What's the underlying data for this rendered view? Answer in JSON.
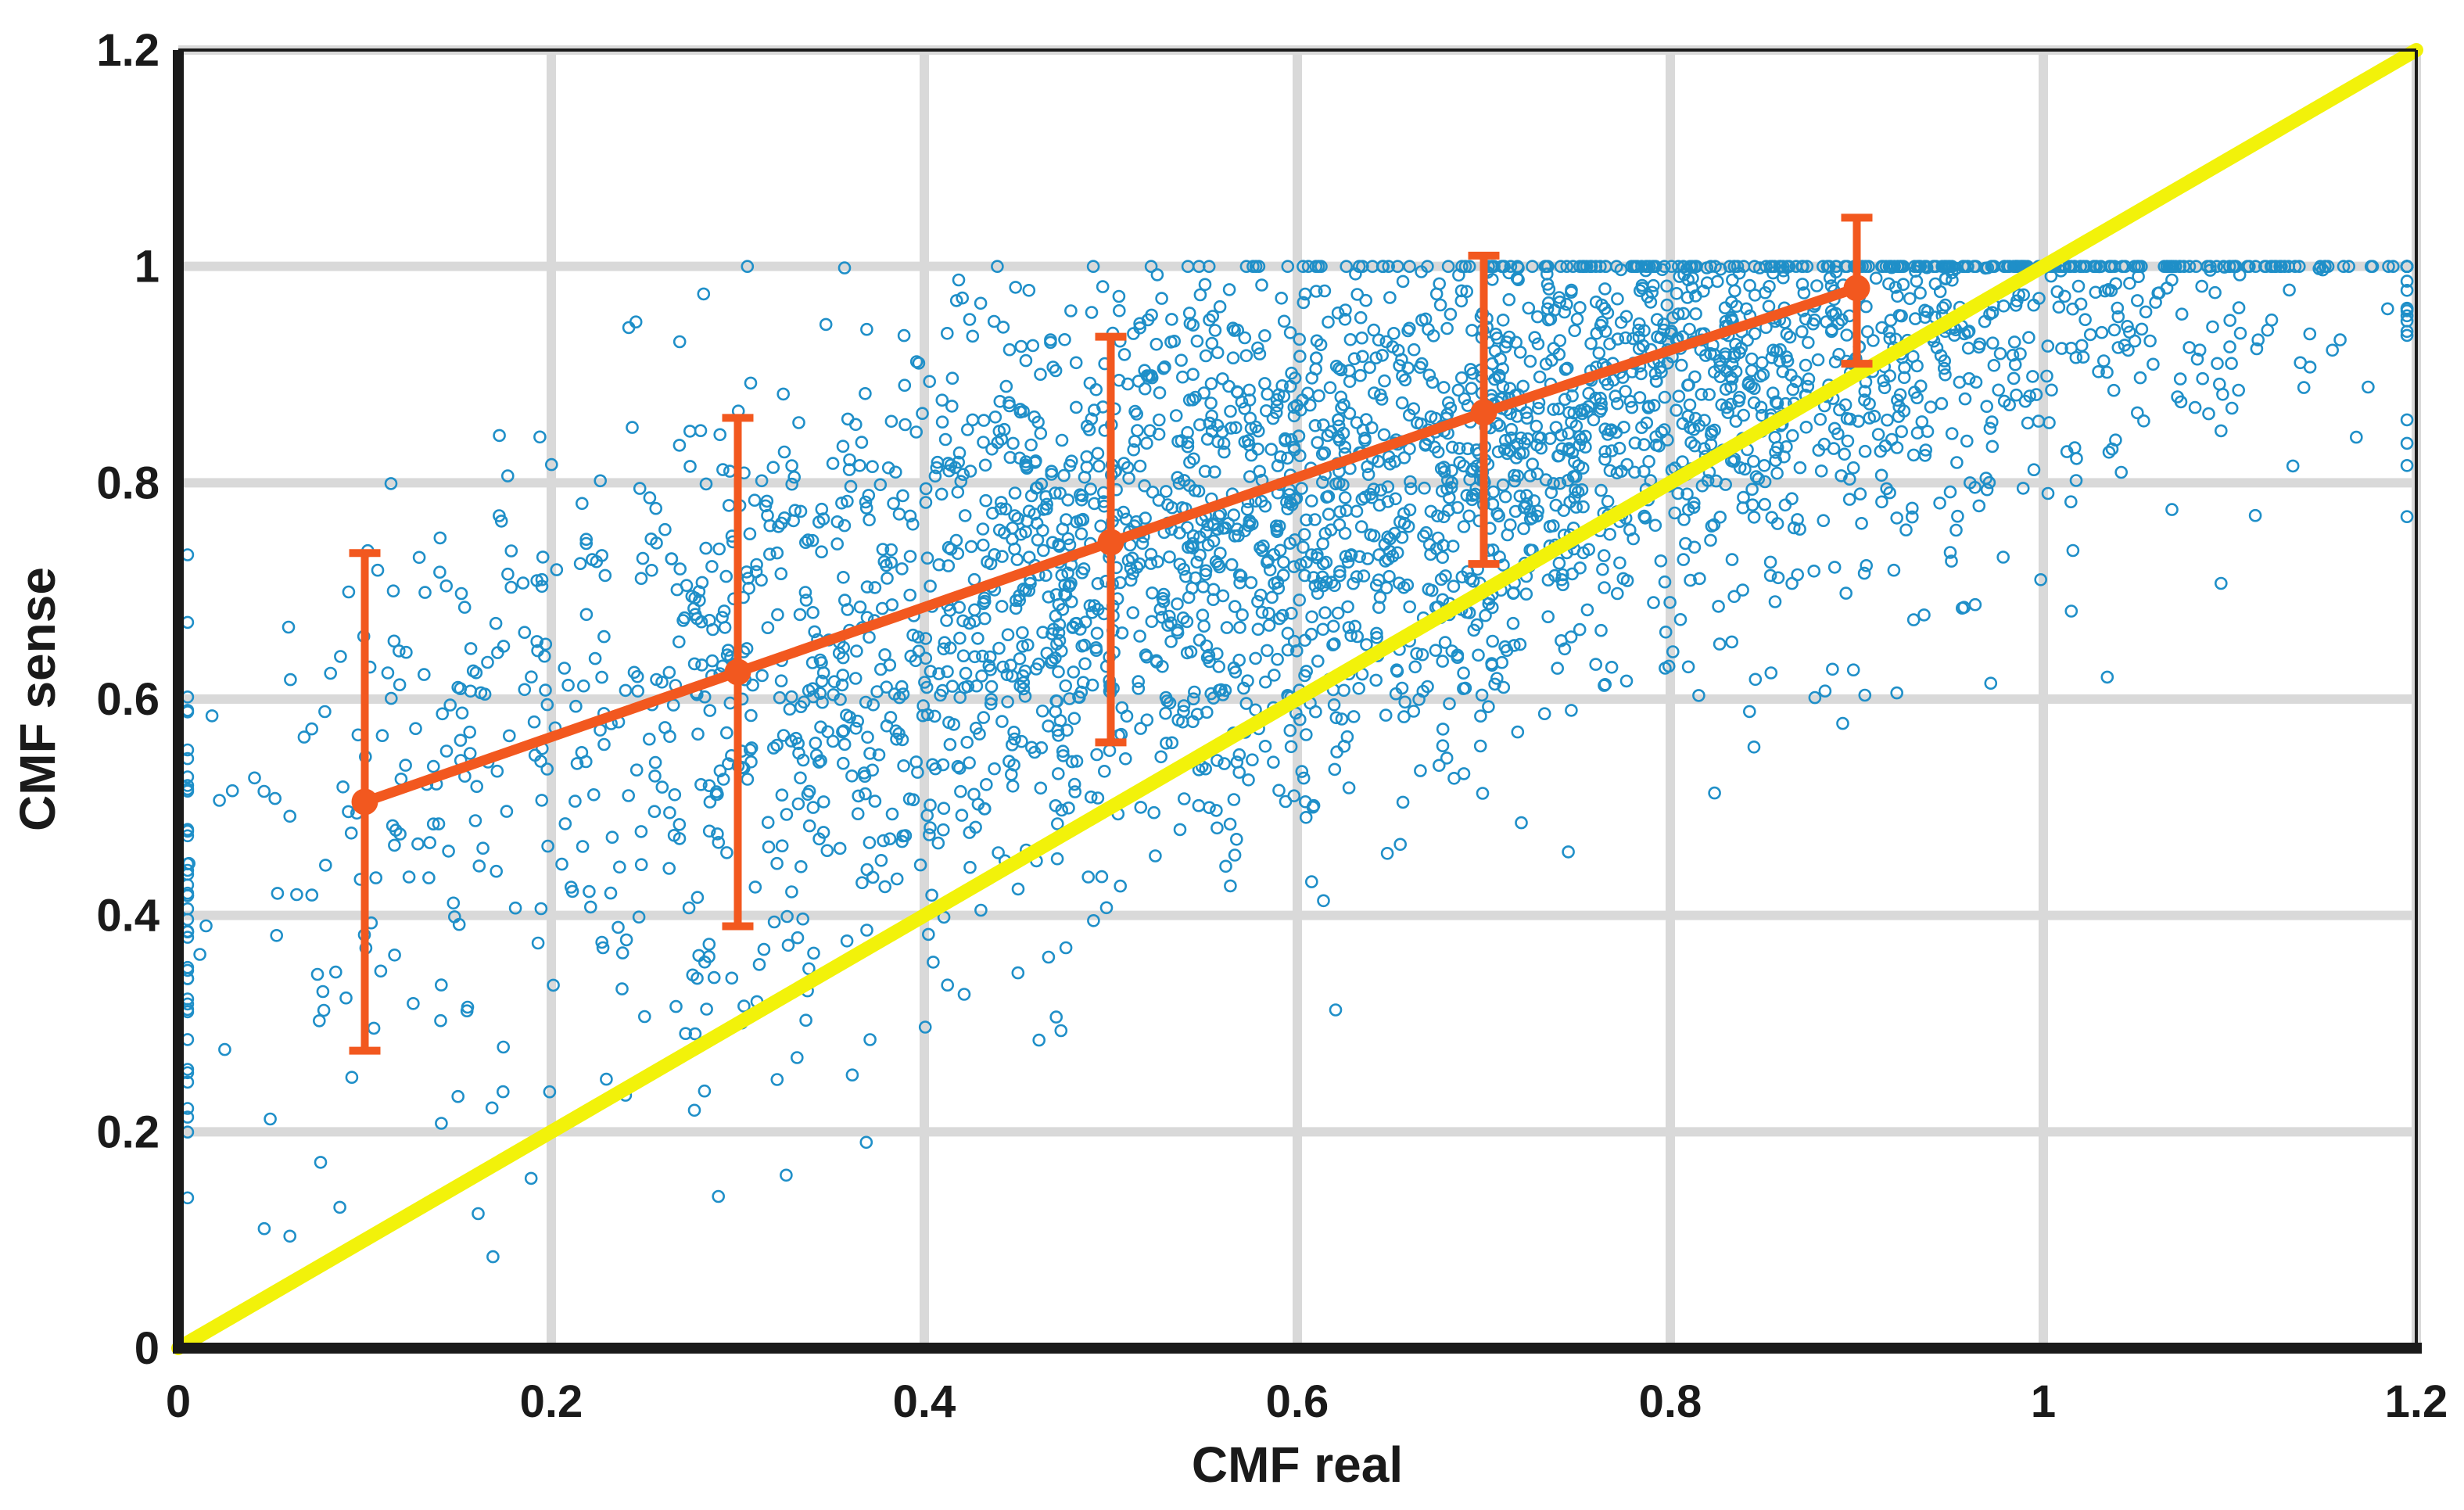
{
  "chart_data": {
    "type": "scatter",
    "title": "",
    "xlabel": "CMF real",
    "ylabel": "CMF sense",
    "xlim": [
      0,
      1.2
    ],
    "ylim": [
      0,
      1.2
    ],
    "x_ticks": [
      "0",
      "0.2",
      "0.4",
      "0.6",
      "0.8",
      "1",
      "1.2"
    ],
    "y_ticks": [
      "0",
      "0.2",
      "0.4",
      "0.6",
      "0.8",
      "1",
      "1.2"
    ],
    "grid": true,
    "legend": "none",
    "colors": {
      "scatter": "#1f8fc8",
      "identity_line": "#f2f20a",
      "mean_line": "#f2581f",
      "grid": "#d9d9d9",
      "axes": "#1a1a1a"
    },
    "scatter_point_count": 3500,
    "reference_line": {
      "x": [
        0,
        1.2
      ],
      "y": [
        0,
        1.2
      ]
    },
    "mean_series": {
      "x": [
        0.1,
        0.3,
        0.5,
        0.7,
        0.9
      ],
      "y": [
        0.505,
        0.625,
        0.745,
        0.865,
        0.98
      ],
      "err_lower": [
        0.275,
        0.39,
        0.56,
        0.725,
        0.91
      ],
      "err_upper": [
        0.735,
        0.86,
        0.935,
        1.01,
        1.045
      ]
    }
  }
}
